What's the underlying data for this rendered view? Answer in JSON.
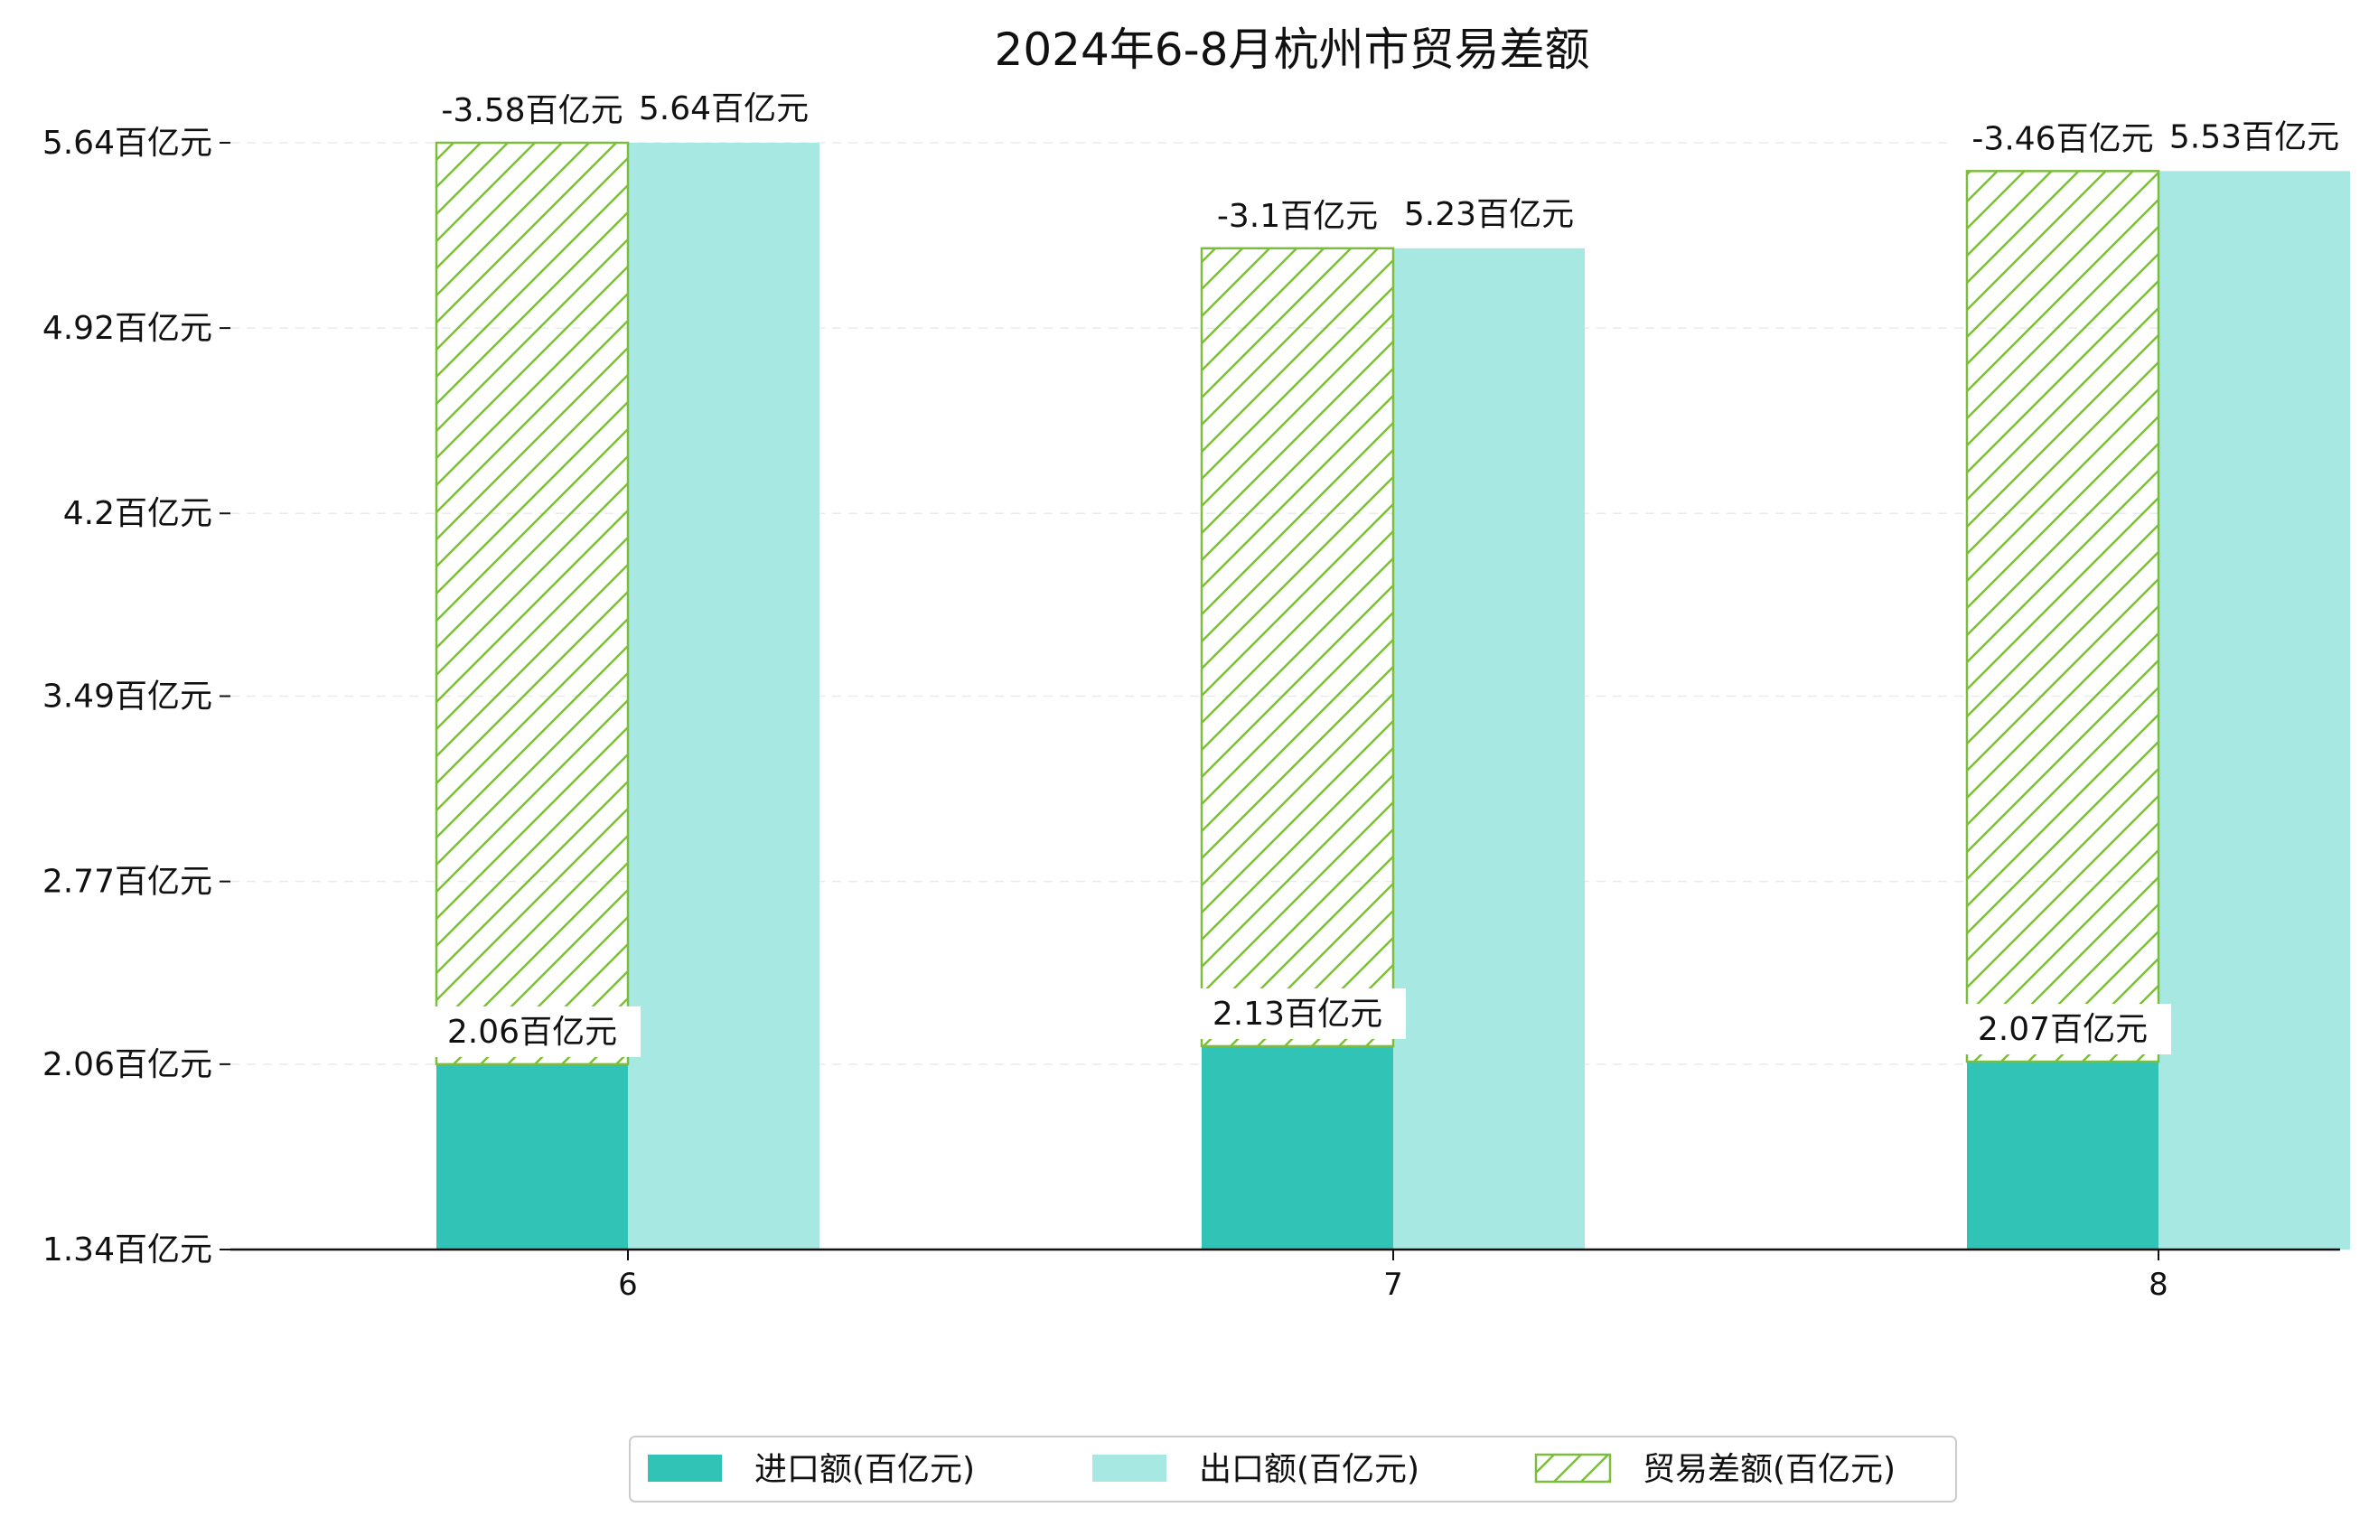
{
  "chart_data": {
    "type": "bar",
    "title": "2024年6-8月杭州市贸易差额",
    "xlabel": "",
    "ylabel": "",
    "categories": [
      "6",
      "7",
      "8"
    ],
    "ylim": [
      1.34,
      5.64
    ],
    "y_ticks": [
      1.34,
      2.06,
      2.77,
      3.49,
      4.2,
      4.92,
      5.64
    ],
    "y_tick_labels": [
      "1.34百亿元",
      "2.06百亿元",
      "2.77百亿元",
      "3.49百亿元",
      "4.2百亿元",
      "4.92百亿元",
      "5.64百亿元"
    ],
    "grid": true,
    "legend_position": "bottom",
    "stacked_pair": "import_plus_trade_balance_magnitude",
    "series": [
      {
        "name": "进口额(百亿元)",
        "key": "import",
        "color": "#31c3b5",
        "values": [
          2.06,
          2.13,
          2.07
        ],
        "labels": [
          "2.06百亿元",
          "2.13百亿元",
          "2.07百亿元"
        ]
      },
      {
        "name": "出口额(百亿元)",
        "key": "export",
        "color": "#a7e8e2",
        "values": [
          5.64,
          5.23,
          5.53
        ],
        "labels": [
          "5.64百亿元",
          "5.23百亿元",
          "5.53百亿元"
        ]
      },
      {
        "name": "贸易差额(百亿元)",
        "key": "balance",
        "color": "#7dbd3e",
        "hatch": "diagonal",
        "values": [
          -3.58,
          -3.1,
          -3.46
        ],
        "labels": [
          "-3.58百亿元",
          "-3.1百亿元",
          "-3.46百亿元"
        ]
      }
    ]
  }
}
